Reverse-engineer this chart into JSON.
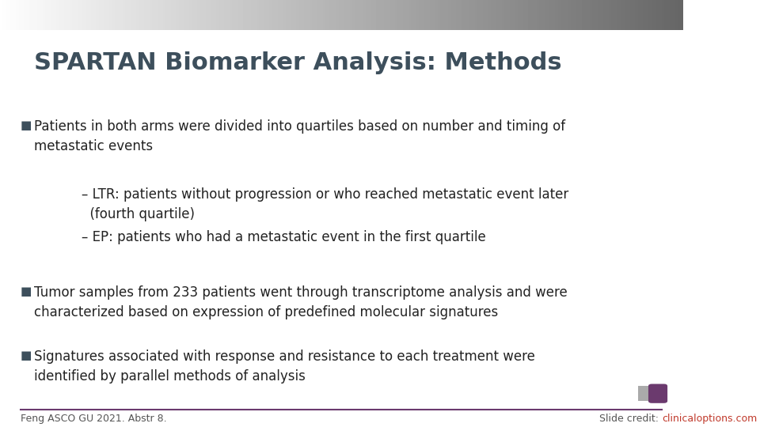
{
  "title": "SPARTAN Biomarker Analysis: Methods",
  "title_color": "#3d4f5c",
  "title_fontsize": 22,
  "background_color": "#ffffff",
  "header_bar_color": "#cccccc",
  "footer_line_color": "#6b3a6e",
  "bullet_color": "#3d4f5c",
  "text_color": "#222222",
  "bullet_points": [
    {
      "type": "bullet",
      "text": "Patients in both arms were divided into quartiles based on number and timing of\nmetastatic events",
      "indent": 0.05
    },
    {
      "type": "sub",
      "text": "– LTR: patients without progression or who reached metastatic event later\n  (fourth quartile)",
      "indent": 0.12
    },
    {
      "type": "sub",
      "text": "– EP: patients who had a metastatic event in the first quartile",
      "indent": 0.12
    },
    {
      "type": "bullet",
      "text": "Tumor samples from 233 patients went through transcriptome analysis and were\ncharacterized based on expression of predefined molecular signatures",
      "indent": 0.05
    },
    {
      "type": "bullet",
      "text": "Signatures associated with response and resistance to each treatment were\nidentified by parallel methods of analysis",
      "indent": 0.05
    }
  ],
  "footer_left": "Feng ASCO GU 2021. Abstr 8.",
  "footer_right_prefix": "Slide credit: ",
  "footer_right_link": "clinicaloptions.com",
  "footer_text_color": "#555555",
  "footer_link_color": "#c0392b",
  "footer_fontsize": 9
}
